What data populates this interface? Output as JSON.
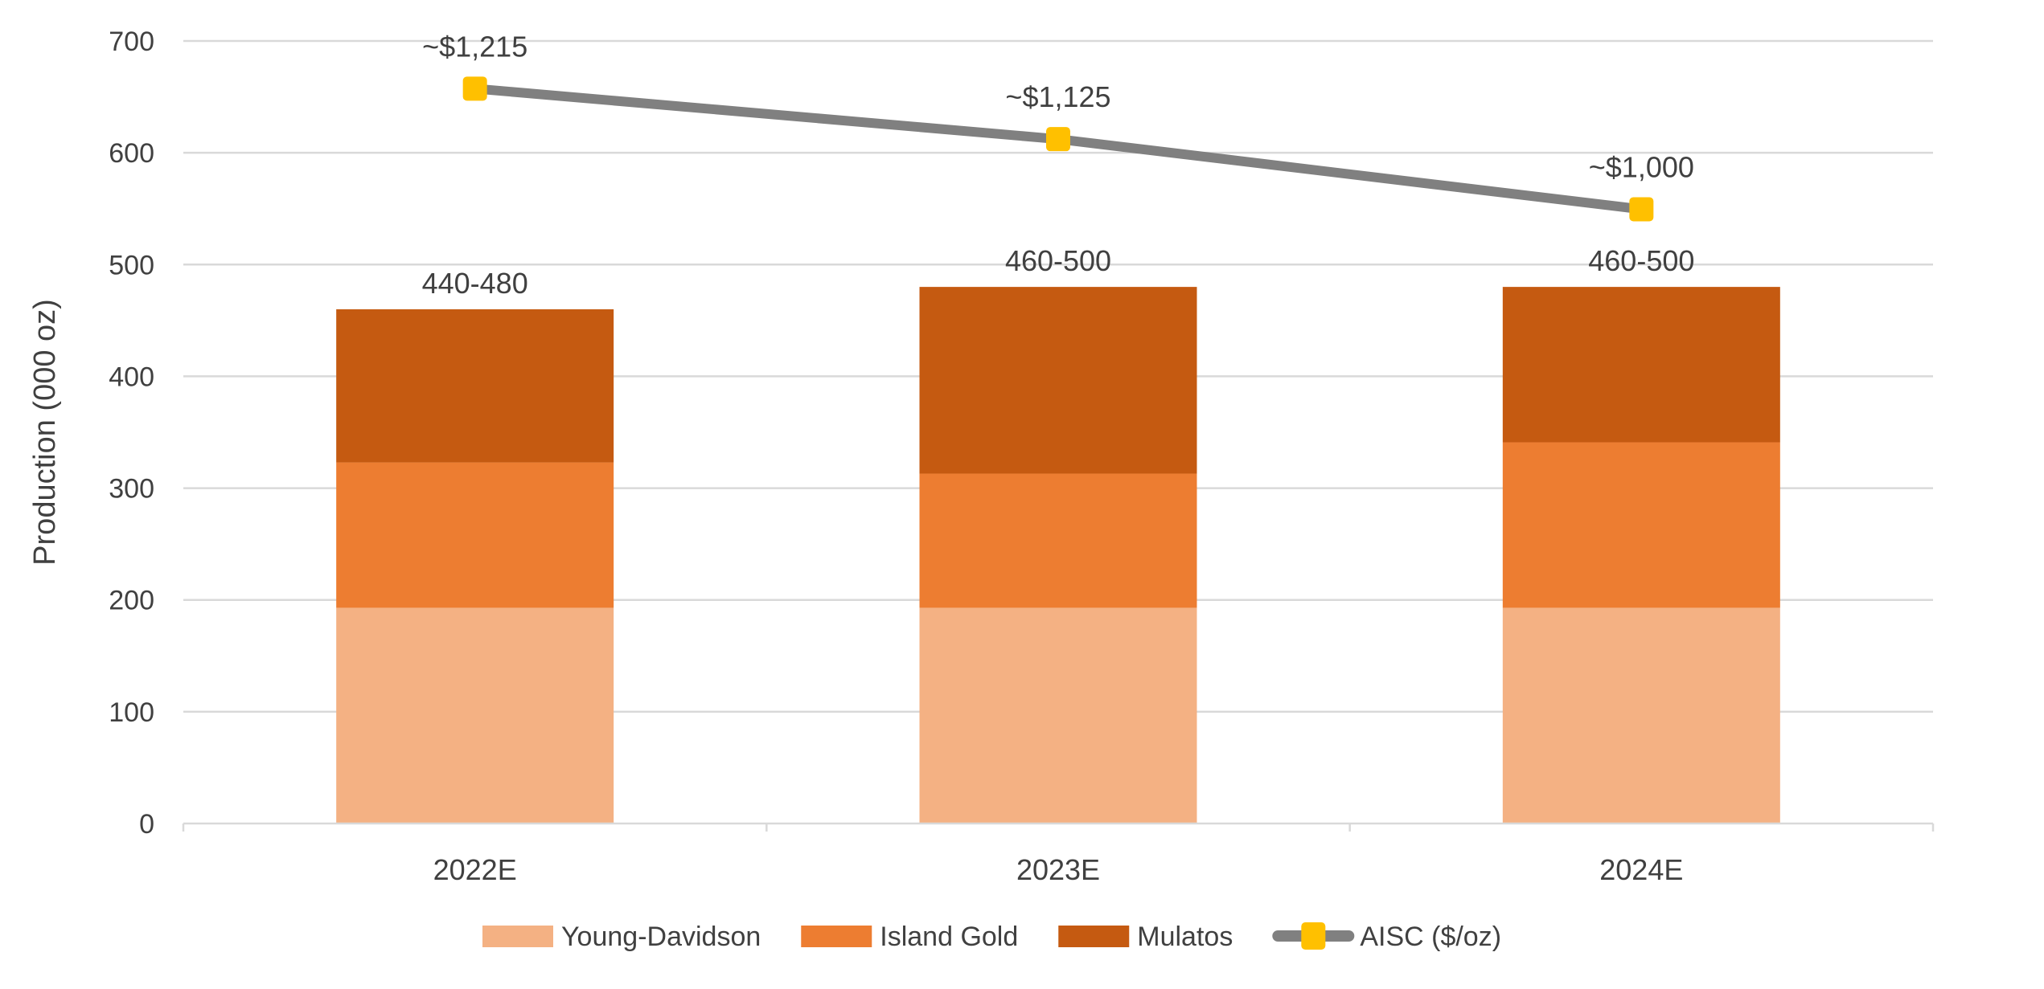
{
  "chart_data": {
    "type": "bar",
    "stacked": true,
    "title": "",
    "xlabel": "",
    "ylabel": "Production (000 oz)",
    "ylim": [
      0,
      700
    ],
    "yticks": [
      0,
      100,
      200,
      300,
      400,
      500,
      600,
      700
    ],
    "grid": true,
    "legend_position": "bottom",
    "categories": [
      "2022E",
      "2023E",
      "2024E"
    ],
    "series": [
      {
        "name": "Young-Davidson",
        "type": "bar",
        "color": "#F4B183",
        "values": [
          193,
          193,
          193
        ]
      },
      {
        "name": "Island Gold",
        "type": "bar",
        "color": "#ED7D31",
        "values": [
          130,
          120,
          148
        ]
      },
      {
        "name": "Mulatos",
        "type": "bar",
        "color": "#C55A11",
        "values": [
          137,
          167,
          139
        ]
      }
    ],
    "bar_total_labels": [
      "440-480",
      "460-500",
      "460-500"
    ],
    "line_series": {
      "name": "AISC ($/oz)",
      "type": "line",
      "axis": "secondary-hidden",
      "y2lim": [
        -95,
        1300
      ],
      "line_color": "#808080",
      "marker_color": "#FFC000",
      "values": [
        1215,
        1125,
        1000
      ],
      "labels": [
        "~$1,215",
        "~$1,125",
        "~$1,000"
      ]
    }
  }
}
